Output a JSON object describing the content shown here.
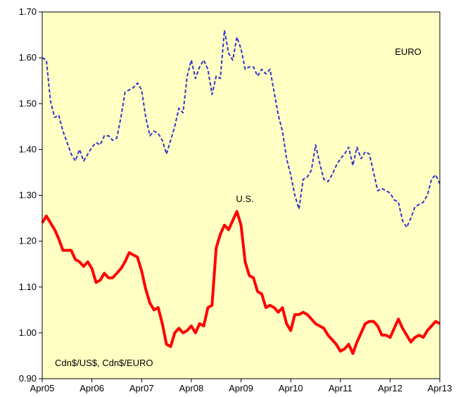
{
  "chart_data": {
    "type": "line",
    "annotations": [
      "EURO",
      "U.S.",
      "Cdn$/US$, Cdn$/EURO"
    ],
    "categories": [
      "Apr05",
      null,
      null,
      null,
      null,
      null,
      null,
      null,
      null,
      null,
      null,
      null,
      "Apr06",
      null,
      null,
      null,
      null,
      null,
      null,
      null,
      null,
      null,
      null,
      null,
      "Apr07",
      null,
      null,
      null,
      null,
      null,
      null,
      null,
      null,
      null,
      null,
      null,
      "Apr08",
      null,
      null,
      null,
      null,
      null,
      null,
      null,
      null,
      null,
      null,
      null,
      "Apr09",
      null,
      null,
      null,
      null,
      null,
      null,
      null,
      null,
      null,
      null,
      null,
      "Apr10",
      null,
      null,
      null,
      null,
      null,
      null,
      null,
      null,
      null,
      null,
      null,
      "Apr11",
      null,
      null,
      null,
      null,
      null,
      null,
      null,
      null,
      null,
      null,
      null,
      "Apr12",
      null,
      null,
      null,
      null,
      null,
      null,
      null,
      null,
      null,
      null,
      null,
      "Apr13"
    ],
    "series": [
      {
        "name": "EURO",
        "color": "#3333cc",
        "dashed": true,
        "values": [
          1.6,
          1.595,
          1.505,
          1.47,
          1.475,
          1.44,
          1.415,
          1.39,
          1.375,
          1.4,
          1.375,
          1.39,
          1.405,
          1.415,
          1.41,
          1.43,
          1.43,
          1.42,
          1.425,
          1.47,
          1.525,
          1.53,
          1.535,
          1.545,
          1.53,
          1.47,
          1.43,
          1.44,
          1.435,
          1.42,
          1.39,
          1.42,
          1.45,
          1.49,
          1.48,
          1.56,
          1.595,
          1.555,
          1.58,
          1.595,
          1.575,
          1.52,
          1.56,
          1.555,
          1.66,
          1.61,
          1.595,
          1.645,
          1.62,
          1.575,
          1.58,
          1.58,
          1.56,
          1.575,
          1.565,
          1.575,
          1.525,
          1.475,
          1.44,
          1.38,
          1.345,
          1.3,
          1.27,
          1.335,
          1.34,
          1.355,
          1.41,
          1.37,
          1.335,
          1.33,
          1.345,
          1.365,
          1.38,
          1.39,
          1.405,
          1.365,
          1.405,
          1.38,
          1.395,
          1.39,
          1.35,
          1.31,
          1.315,
          1.31,
          1.305,
          1.29,
          1.285,
          1.245,
          1.23,
          1.25,
          1.275,
          1.28,
          1.285,
          1.3,
          1.335,
          1.345,
          1.325
        ]
      },
      {
        "name": "U.S.",
        "color": "#ff0000",
        "dashed": false,
        "values": [
          1.24,
          1.255,
          1.24,
          1.225,
          1.205,
          1.18,
          1.18,
          1.18,
          1.16,
          1.155,
          1.145,
          1.155,
          1.14,
          1.11,
          1.115,
          1.13,
          1.12,
          1.12,
          1.13,
          1.14,
          1.155,
          1.175,
          1.17,
          1.165,
          1.135,
          1.095,
          1.065,
          1.05,
          1.055,
          1.02,
          0.975,
          0.97,
          1.0,
          1.01,
          1.0,
          1.005,
          1.015,
          1.0,
          1.02,
          1.015,
          1.055,
          1.06,
          1.185,
          1.215,
          1.235,
          1.225,
          1.245,
          1.265,
          1.235,
          1.155,
          1.125,
          1.12,
          1.09,
          1.085,
          1.055,
          1.06,
          1.055,
          1.045,
          1.055,
          1.02,
          1.005,
          1.04,
          1.04,
          1.045,
          1.04,
          1.03,
          1.02,
          1.015,
          1.01,
          0.995,
          0.985,
          0.975,
          0.96,
          0.965,
          0.975,
          0.955,
          0.98,
          1.0,
          1.02,
          1.025,
          1.025,
          1.015,
          0.995,
          0.995,
          0.99,
          1.01,
          1.03,
          1.01,
          0.995,
          0.98,
          0.99,
          0.995,
          0.99,
          1.005,
          1.015,
          1.025,
          1.02
        ]
      }
    ],
    "ylim": [
      0.9,
      1.7
    ],
    "yticks": [
      {
        "value": 0.9,
        "label": "0.90"
      },
      {
        "value": 1.0,
        "label": "1.00"
      },
      {
        "value": 1.1,
        "label": "1.10"
      },
      {
        "value": 1.2,
        "label": "1.20"
      },
      {
        "value": 1.3,
        "label": "1.30"
      },
      {
        "value": 1.4,
        "label": "1.40"
      },
      {
        "value": 1.5,
        "label": "1.50"
      },
      {
        "value": 1.6,
        "label": "1.60"
      },
      {
        "value": 1.7,
        "label": "1.70"
      }
    ],
    "background": "#ffffc4"
  }
}
